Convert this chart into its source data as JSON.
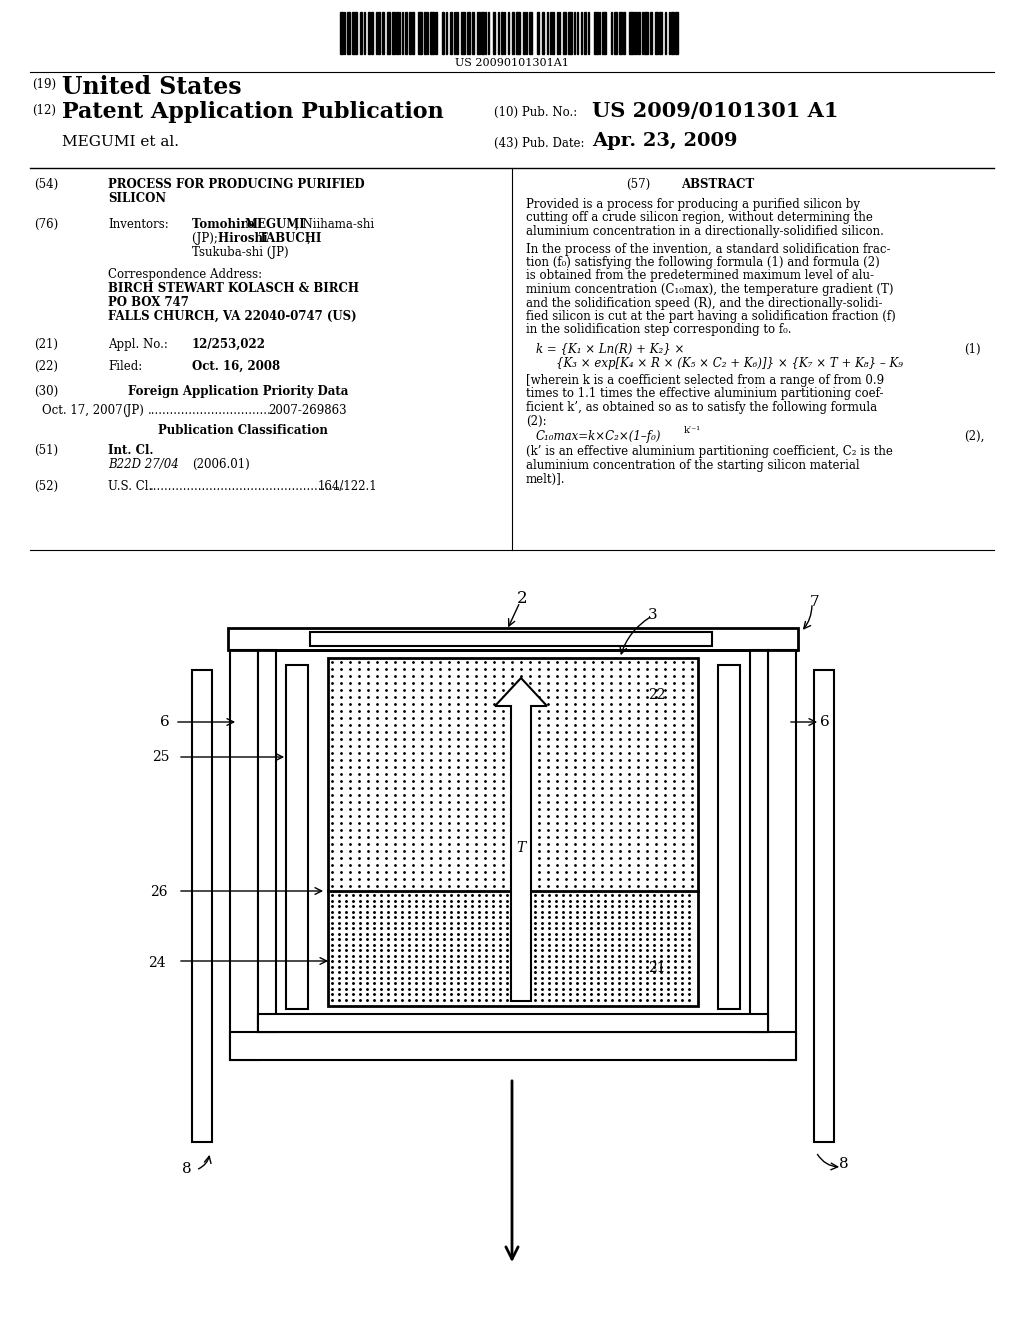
{
  "bg_color": "#ffffff",
  "barcode_text": "US 20090101301A1",
  "country": "United States",
  "pub_type": "Patent Application Publication",
  "pub_no_label": "(10) Pub. No.:",
  "pub_no": "US 2009/0101301 A1",
  "pub_date_label": "(43) Pub. Date:",
  "pub_date": "Apr. 23, 2009",
  "applicant": "MEGUMI et al.",
  "title_bold": "PROCESS FOR PRODUCING PURIFIED",
  "title_bold2": "SILICON",
  "inv_label": "Inventors:",
  "inv1_name": "Tomohiro MEGUMI",
  "inv1_loc": ", Niihama-shi",
  "inv2_pre": "(JP); ",
  "inv2_name": "Hiroshi TABUCHI",
  "inv2_suf": ",",
  "inv3": "Tsukuba-shi (JP)",
  "corr_label": "Correspondence Address:",
  "corr1": "BIRCH STEWART KOLASCH & BIRCH",
  "corr2": "PO BOX 747",
  "corr3": "FALLS CHURCH, VA 22040-0747 (US)",
  "appl_label": "Appl. No.:",
  "appl_val": "12/253,022",
  "filed_label": "Filed:",
  "filed_val": "Oct. 16, 2008",
  "foreign_header": "Foreign Application Priority Data",
  "foreign_date": "Oct. 17, 2007",
  "foreign_country": "(JP)",
  "foreign_dots": ".................................",
  "foreign_num": "2007-269863",
  "pubclass_header": "Publication Classification",
  "intcl_label": "Int. Cl.",
  "intcl_val": "B22D 27/04",
  "intcl_year": "(2006.01)",
  "uscl_label": "U.S. Cl.",
  "uscl_dots": "....................................................",
  "uscl_val": "164/122.1",
  "abs_header": "ABSTRACT",
  "abs_p1": "Provided is a process for producing a purified silicon by\ncutting off a crude silicon region, without determining the\naluminium concentration in a directionally-solidified silicon.",
  "abs_p2a": "In the process of the invention, a standard solidification frac-",
  "abs_p2b": "tion (f",
  "abs_p2c": ") satisfying the following formula (1) and formula (2)",
  "abs_p2d": "is obtained from the predetermined maximum level of alu-",
  "abs_p2e": "minium concentration (C",
  "abs_p2f": "), the temperature gradient (T)",
  "abs_p2g": "and the solidification speed (R), and the directionally-solidi-",
  "abs_p2h": "fied silicon is cut at the part having a solidification fraction (f)",
  "abs_p2i": "in the solidification step corresponding to f",
  "abs_p2j": ".",
  "formula1_lhs": "k = {K",
  "formula1_mid": " × Ln(R) + K",
  "formula1_rhs": "} ×",
  "formula1_num": "(1)",
  "formula1b": "{K",
  "formula1b2": " × exp[K",
  "formula1b3": " × R × (K",
  "formula1b4": " × C",
  "formula1b5": " + K",
  "formula1b6": ")]} × {K",
  "formula1b7": " × T + K",
  "formula1b8": "} – K",
  "abs_p3a": "[wherein k is a coefficient selected from a range of from 0.9",
  "abs_p3b": "times to 1.1 times the effective aluminium partitioning coef-",
  "abs_p3c": "ficient k’, as obtained so as to satisfy the following formula",
  "abs_p3d": "(2):",
  "formula2": "C",
  "formula2b": "=k×C",
  "formula2c": "×(1–f",
  "formula2d": ")",
  "formula2e": "k′⁻¹",
  "formula2_num": "(2),",
  "abs_p4": "(k’ is an effective aluminium partitioning coefficient, C",
  "abs_p4b": " is the",
  "abs_p4c": "aluminium concentration of the starting silicon material",
  "abs_p4d": "melt)]."
}
